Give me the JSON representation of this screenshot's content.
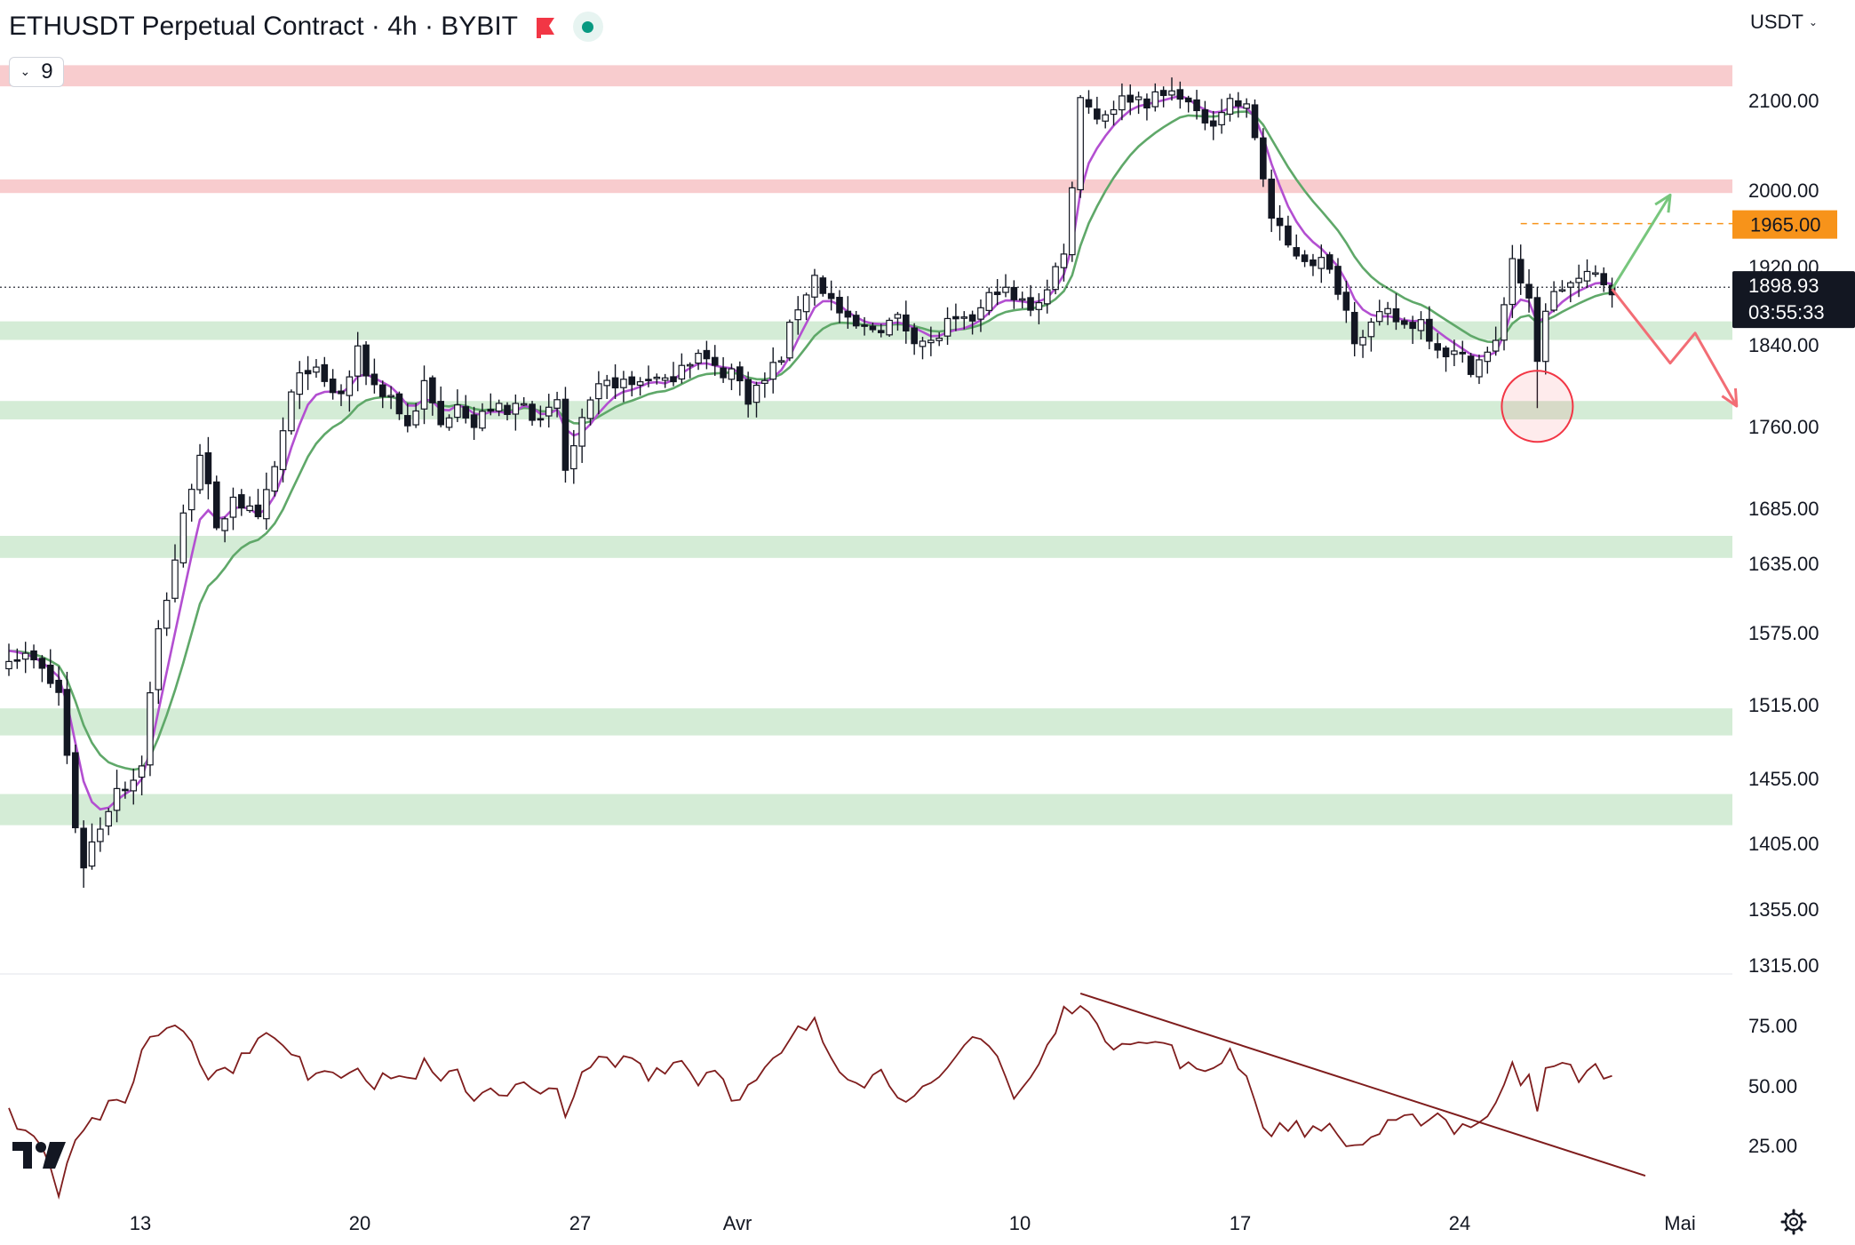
{
  "header": {
    "title": "ETHUSDT Perpetual Contract · 4h · BYBIT",
    "indicator_count": "9",
    "currency": "USDT"
  },
  "colors": {
    "zone_red": "#f7c3c6",
    "zone_green": "#cde9cf",
    "ma_fast": "#b34fd1",
    "ma_slow": "#5fa869",
    "rsi_line": "#7f1d1d",
    "arrow_up": "#77c67d",
    "arrow_down": "#f26d75",
    "alert_level": "#f7931a",
    "logo_dark": "#131722",
    "candle": "#131722"
  },
  "icons": {
    "flag": "red-flag-icon",
    "status": "green-dot-icon",
    "currency_menu": "chevron-down-icon",
    "logo": "tradingview-logo",
    "settings": "gear-icon"
  },
  "chart_data": {
    "type": "candlestick",
    "price_axis": {
      "range": [
        1315,
        2140
      ],
      "ticks": [
        "2100.00",
        "2000.00",
        "1920.00",
        "1840.00",
        "1760.00",
        "1685.00",
        "1635.00",
        "1575.00",
        "1515.00",
        "1455.00",
        "1405.00",
        "1355.00",
        "1315.00"
      ]
    },
    "x_axis": {
      "ticks": [
        "13",
        "20",
        "27",
        "Avr",
        "10",
        "17",
        "24",
        "Mai"
      ]
    },
    "current_price": {
      "value": 1898.93,
      "label": "1898.93",
      "countdown": "03:55:33"
    },
    "alert_level": {
      "value": 1965.0,
      "label": "1965.00"
    },
    "zones": [
      {
        "kind": "resistance",
        "from": 2116,
        "to": 2140
      },
      {
        "kind": "resistance",
        "from": 1997,
        "to": 2012
      },
      {
        "kind": "support",
        "from": 1845,
        "to": 1864
      },
      {
        "kind": "support",
        "from": 1767,
        "to": 1785
      },
      {
        "kind": "support",
        "from": 1640,
        "to": 1660
      },
      {
        "kind": "support",
        "from": 1490,
        "to": 1512
      },
      {
        "kind": "support",
        "from": 1419,
        "to": 1443
      }
    ],
    "close_path": [
      [
        0,
        1560
      ],
      [
        3,
        1550
      ],
      [
        6,
        1525
      ],
      [
        8,
        1420
      ],
      [
        9,
        1390
      ],
      [
        11,
        1420
      ],
      [
        13,
        1450
      ],
      [
        15,
        1455
      ],
      [
        16,
        1470
      ],
      [
        18,
        1575
      ],
      [
        20,
        1640
      ],
      [
        22,
        1710
      ],
      [
        23,
        1740
      ],
      [
        25,
        1660
      ],
      [
        27,
        1700
      ],
      [
        28,
        1690
      ],
      [
        30,
        1670
      ],
      [
        32,
        1720
      ],
      [
        34,
        1790
      ],
      [
        36,
        1820
      ],
      [
        38,
        1800
      ],
      [
        40,
        1790
      ],
      [
        42,
        1830
      ],
      [
        44,
        1800
      ],
      [
        46,
        1790
      ],
      [
        48,
        1760
      ],
      [
        50,
        1800
      ],
      [
        52,
        1760
      ],
      [
        54,
        1790
      ],
      [
        56,
        1760
      ],
      [
        58,
        1780
      ],
      [
        60,
        1770
      ],
      [
        62,
        1790
      ],
      [
        64,
        1760
      ],
      [
        66,
        1785
      ],
      [
        67,
        1720
      ],
      [
        69,
        1760
      ],
      [
        71,
        1795
      ],
      [
        73,
        1805
      ],
      [
        75,
        1800
      ],
      [
        77,
        1810
      ],
      [
        79,
        1800
      ],
      [
        81,
        1825
      ],
      [
        83,
        1830
      ],
      [
        85,
        1815
      ],
      [
        87,
        1815
      ],
      [
        89,
        1790
      ],
      [
        91,
        1805
      ],
      [
        93,
        1830
      ],
      [
        95,
        1880
      ],
      [
        97,
        1910
      ],
      [
        99,
        1885
      ],
      [
        101,
        1860
      ],
      [
        103,
        1855
      ],
      [
        105,
        1860
      ],
      [
        107,
        1865
      ],
      [
        109,
        1850
      ],
      [
        111,
        1840
      ],
      [
        113,
        1860
      ],
      [
        115,
        1860
      ],
      [
        117,
        1875
      ],
      [
        119,
        1900
      ],
      [
        121,
        1885
      ],
      [
        123,
        1880
      ],
      [
        125,
        1895
      ],
      [
        127,
        1940
      ],
      [
        128,
        2000
      ],
      [
        129,
        2110
      ],
      [
        131,
        2080
      ],
      [
        133,
        2095
      ],
      [
        135,
        2105
      ],
      [
        137,
        2100
      ],
      [
        139,
        2105
      ],
      [
        141,
        2110
      ],
      [
        143,
        2080
      ],
      [
        145,
        2080
      ],
      [
        147,
        2100
      ],
      [
        149,
        2090
      ],
      [
        150,
        2060
      ],
      [
        152,
        1970
      ],
      [
        154,
        1940
      ],
      [
        156,
        1930
      ],
      [
        158,
        1925
      ],
      [
        160,
        1900
      ],
      [
        162,
        1850
      ],
      [
        164,
        1860
      ],
      [
        166,
        1870
      ],
      [
        168,
        1860
      ],
      [
        170,
        1865
      ],
      [
        172,
        1840
      ],
      [
        174,
        1830
      ],
      [
        176,
        1820
      ],
      [
        178,
        1830
      ],
      [
        179,
        1840
      ],
      [
        181,
        1930
      ],
      [
        183,
        1880
      ],
      [
        184,
        1820
      ],
      [
        185,
        1880
      ],
      [
        187,
        1900
      ],
      [
        189,
        1905
      ],
      [
        191,
        1910
      ],
      [
        193,
        1900
      ]
    ],
    "ma_fast_period": 5,
    "ma_slow_period": 12,
    "projections": [
      {
        "direction": "up",
        "points": [
          [
            193,
            1897
          ],
          [
            200,
            1995
          ]
        ]
      },
      {
        "direction": "down",
        "points": [
          [
            193,
            1897
          ],
          [
            200,
            1822
          ],
          [
            203,
            1852
          ],
          [
            208,
            1780
          ]
        ]
      }
    ],
    "marked_wick": {
      "x": 184,
      "price": 1778
    },
    "rsi": {
      "ticks": [
        "75.00",
        "50.00",
        "25.00"
      ],
      "range": [
        0,
        100
      ],
      "path": [
        [
          0,
          38
        ],
        [
          3,
          28
        ],
        [
          5,
          18
        ],
        [
          6,
          6
        ],
        [
          8,
          30
        ],
        [
          10,
          35
        ],
        [
          12,
          40
        ],
        [
          14,
          42
        ],
        [
          16,
          65
        ],
        [
          18,
          72
        ],
        [
          20,
          76
        ],
        [
          22,
          70
        ],
        [
          24,
          54
        ],
        [
          26,
          56
        ],
        [
          28,
          60
        ],
        [
          30,
          72
        ],
        [
          32,
          68
        ],
        [
          34,
          62
        ],
        [
          36,
          55
        ],
        [
          38,
          58
        ],
        [
          40,
          54
        ],
        [
          42,
          60
        ],
        [
          44,
          48
        ],
        [
          46,
          55
        ],
        [
          48,
          52
        ],
        [
          50,
          58
        ],
        [
          52,
          50
        ],
        [
          54,
          55
        ],
        [
          56,
          44
        ],
        [
          58,
          50
        ],
        [
          60,
          46
        ],
        [
          62,
          50
        ],
        [
          64,
          44
        ],
        [
          66,
          48
        ],
        [
          67,
          40
        ],
        [
          69,
          52
        ],
        [
          71,
          60
        ],
        [
          73,
          58
        ],
        [
          75,
          62
        ],
        [
          77,
          55
        ],
        [
          79,
          58
        ],
        [
          81,
          60
        ],
        [
          83,
          52
        ],
        [
          85,
          58
        ],
        [
          87,
          46
        ],
        [
          89,
          48
        ],
        [
          91,
          55
        ],
        [
          93,
          62
        ],
        [
          95,
          72
        ],
        [
          97,
          75
        ],
        [
          99,
          62
        ],
        [
          101,
          55
        ],
        [
          103,
          52
        ],
        [
          105,
          55
        ],
        [
          107,
          48
        ],
        [
          109,
          44
        ],
        [
          111,
          48
        ],
        [
          113,
          54
        ],
        [
          115,
          66
        ],
        [
          117,
          72
        ],
        [
          119,
          62
        ],
        [
          121,
          44
        ],
        [
          123,
          52
        ],
        [
          125,
          65
        ],
        [
          127,
          80
        ],
        [
          129,
          86
        ],
        [
          131,
          72
        ],
        [
          133,
          68
        ],
        [
          135,
          70
        ],
        [
          137,
          66
        ],
        [
          139,
          68
        ],
        [
          141,
          60
        ],
        [
          143,
          54
        ],
        [
          145,
          58
        ],
        [
          147,
          64
        ],
        [
          149,
          55
        ],
        [
          150,
          42
        ],
        [
          152,
          28
        ],
        [
          154,
          34
        ],
        [
          156,
          30
        ],
        [
          158,
          34
        ],
        [
          160,
          28
        ],
        [
          162,
          24
        ],
        [
          164,
          28
        ],
        [
          166,
          32
        ],
        [
          168,
          34
        ],
        [
          170,
          36
        ],
        [
          172,
          38
        ],
        [
          174,
          32
        ],
        [
          176,
          34
        ],
        [
          178,
          36
        ],
        [
          179,
          40
        ],
        [
          181,
          62
        ],
        [
          182,
          52
        ],
        [
          183,
          56
        ],
        [
          184,
          42
        ],
        [
          185,
          54
        ],
        [
          187,
          58
        ],
        [
          189,
          54
        ],
        [
          191,
          56
        ],
        [
          193,
          54
        ]
      ],
      "trendline": [
        [
          129,
          88
        ],
        [
          197,
          12
        ]
      ]
    }
  }
}
